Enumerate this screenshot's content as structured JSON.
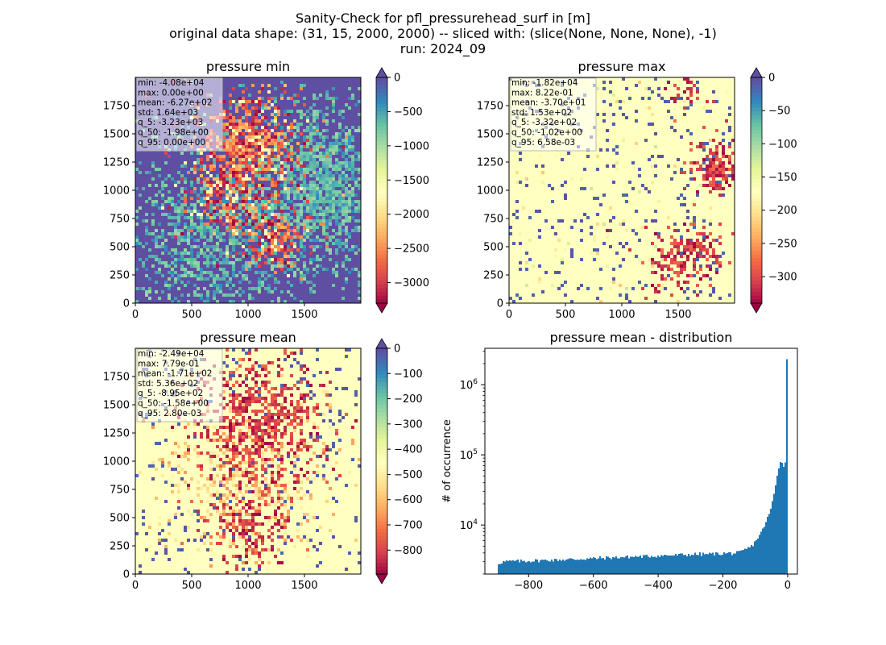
{
  "figure": {
    "title_lines": [
      "Sanity-Check for pfl_pressurehead_surf in [m]",
      "original data shape: (31, 15, 2000, 2000) -- sliced with: (slice(None, None, None), -1)",
      "run: 2024_09"
    ]
  },
  "colormap": {
    "name": "Spectral",
    "stops": [
      "#9e0142",
      "#d53e4f",
      "#f46d43",
      "#fdae61",
      "#fee08b",
      "#ffffbf",
      "#e6f598",
      "#abdda4",
      "#66c2a5",
      "#3288bd",
      "#5e4fa2"
    ]
  },
  "chart_data": [
    {
      "type": "heatmap",
      "title": "pressure min",
      "xlim": [
        0,
        2000
      ],
      "ylim": [
        0,
        2000
      ],
      "xticks": [
        "0",
        "500",
        "1000",
        "1500"
      ],
      "yticks": [
        "0",
        "250",
        "500",
        "750",
        "1000",
        "1250",
        "1500",
        "1750"
      ],
      "colorbar": {
        "vmin": -3300,
        "vmax": 0,
        "extend": "both",
        "ticks": [
          "0",
          "−500",
          "−1000",
          "−1500",
          "−2000",
          "−2500",
          "−3000"
        ],
        "tick_values": [
          0,
          -500,
          -1000,
          -1500,
          -2000,
          -2500,
          -3000
        ]
      },
      "stats": [
        "min: -4.08e+04",
        "max: 0.00e+00",
        "mean: -6.27e+02",
        "std: 1.64e+03",
        "q_5: -3.23e+03",
        "q_50: -1.98e+00",
        "q_95: 0.00e+00"
      ],
      "background": "#5e4fa2",
      "pattern": "min"
    },
    {
      "type": "heatmap",
      "title": "pressure max",
      "xlim": [
        0,
        2000
      ],
      "ylim": [
        0,
        2000
      ],
      "xticks": [
        "0",
        "500",
        "1000",
        "1500"
      ],
      "yticks": [
        "0",
        "250",
        "500",
        "750",
        "1000",
        "1250",
        "1500",
        "1750"
      ],
      "colorbar": {
        "vmin": -340,
        "vmax": 0,
        "extend": "both",
        "ticks": [
          "0",
          "−50",
          "−100",
          "−150",
          "−200",
          "−250",
          "−300"
        ],
        "tick_values": [
          0,
          -50,
          -100,
          -150,
          -200,
          -250,
          -300
        ]
      },
      "stats": [
        "min: -1.82e+04",
        "max: 8.22e-01",
        "mean: -3.70e+01",
        "std: 1.53e+02",
        "q_5: -3.32e+02",
        "q_50: -1.02e+00",
        "q_95: 6.58e-03"
      ],
      "background": "#ffffbf",
      "pattern": "max"
    },
    {
      "type": "heatmap",
      "title": "pressure mean",
      "xlim": [
        0,
        2000
      ],
      "ylim": [
        0,
        2000
      ],
      "xticks": [
        "0",
        "500",
        "1000",
        "1500"
      ],
      "yticks": [
        "0",
        "250",
        "500",
        "750",
        "1000",
        "1250",
        "1500",
        "1750"
      ],
      "colorbar": {
        "vmin": -895,
        "vmax": 0,
        "extend": "both",
        "ticks": [
          "0",
          "−100",
          "−200",
          "−300",
          "−400",
          "−500",
          "−600",
          "−700",
          "−800"
        ],
        "tick_values": [
          0,
          -100,
          -200,
          -300,
          -400,
          -500,
          -600,
          -700,
          -800
        ]
      },
      "stats": [
        "min: -2.49e+04",
        "max: 7.79e-01",
        "mean: -1.71e+02",
        "std: 5.36e+02",
        "q_5: -8.95e+02",
        "q_50: -1.58e+00",
        "q_95: 2.80e-03"
      ],
      "background": "#ffffbf",
      "pattern": "mean"
    },
    {
      "type": "bar",
      "title": "pressure mean - distribution",
      "ylabel": "# of occurrence",
      "xlabel": "",
      "yscale": "log",
      "xlim": [
        -935,
        30
      ],
      "ylim": [
        2000,
        3300000
      ],
      "xticks": [
        "−800",
        "−600",
        "−400",
        "−200",
        "0"
      ],
      "xtick_values": [
        -800,
        -600,
        -400,
        -200,
        0
      ],
      "ytick_exponents": [
        4,
        5,
        6
      ],
      "bar_color": "#1f77b4",
      "bin_range": [
        -895,
        0
      ],
      "bin_count": 180,
      "anchor_bins": [
        {
          "x": -895,
          "y": 2800
        },
        {
          "x": -880,
          "y": 3000
        },
        {
          "x": -700,
          "y": 3200
        },
        {
          "x": -500,
          "y": 3500
        },
        {
          "x": -300,
          "y": 3800
        },
        {
          "x": -150,
          "y": 4000
        },
        {
          "x": -110,
          "y": 5000
        },
        {
          "x": -80,
          "y": 8000
        },
        {
          "x": -55,
          "y": 15000
        },
        {
          "x": -40,
          "y": 30000
        },
        {
          "x": -30,
          "y": 60000
        },
        {
          "x": -20,
          "y": 90000
        },
        {
          "x": -15,
          "y": 75000
        },
        {
          "x": -10,
          "y": 60000
        },
        {
          "x": -5,
          "y": 95000
        },
        {
          "x": 0,
          "y": 2300000
        }
      ]
    }
  ]
}
